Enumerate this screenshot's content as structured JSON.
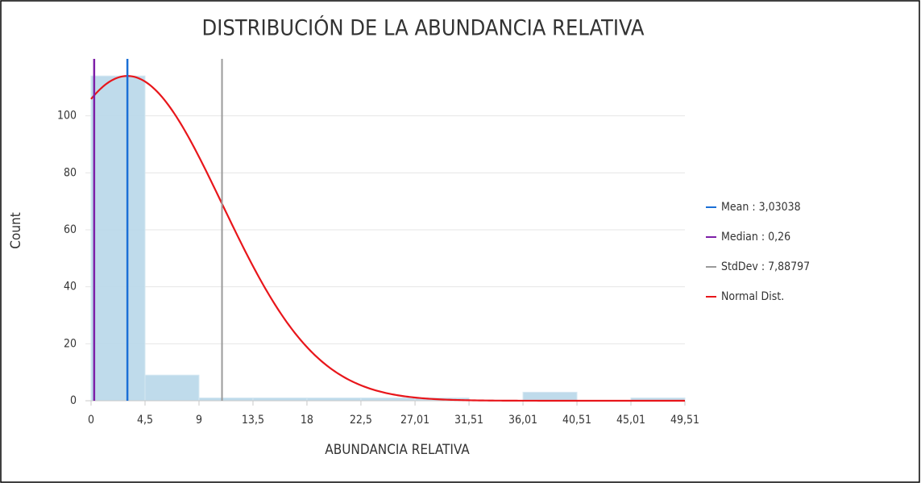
{
  "chart_data": {
    "type": "histogram",
    "title": "DISTRIBUCIÓN DE LA ABUNDANCIA RELATIVA",
    "x_label": "ABUNDANCIA RELATIVA",
    "y_label": "Count",
    "bins": [
      0,
      4.5,
      9,
      13.5,
      18,
      22.5,
      27.01,
      31.51,
      36.01,
      40.51,
      45.01,
      49.51
    ],
    "values": [
      114,
      9,
      1,
      1,
      1,
      1,
      1,
      0,
      3,
      0,
      1
    ],
    "color": "#bcd9ea",
    "xlim": [
      0,
      49.51
    ],
    "ylim": [
      0,
      120
    ],
    "xticks": [
      0,
      {
        "value": 4.5,
        "label": "4,5"
      },
      9,
      {
        "value": 13.5,
        "label": "13,5"
      },
      18,
      {
        "value": 22.5,
        "label": "22,5"
      },
      {
        "value": 27.01,
        "label": "27,01"
      },
      {
        "value": 31.51,
        "label": "31,51"
      },
      {
        "value": 36.01,
        "label": "36,01"
      },
      {
        "value": 40.51,
        "label": "40,51"
      },
      {
        "value": 45.01,
        "label": "45,01"
      },
      {
        "value": 49.51,
        "label": "49,51"
      }
    ],
    "yticks": [
      0,
      20,
      40,
      60,
      80,
      100
    ],
    "grid": true,
    "legend_position": "right",
    "stats": {
      "mean": {
        "value": 3.03038,
        "label": "Mean : 3,03038",
        "color": "#1a6fd6"
      },
      "median": {
        "value": 0.26,
        "label": "Median : 0,26",
        "color": "#7d1fa8"
      },
      "stddev": {
        "value": 7.88797,
        "label": "StdDev : 7,88797",
        "color": "#9a9a9a"
      },
      "normal": {
        "label": "Normal Dist.",
        "color": "#e8161b"
      }
    }
  }
}
